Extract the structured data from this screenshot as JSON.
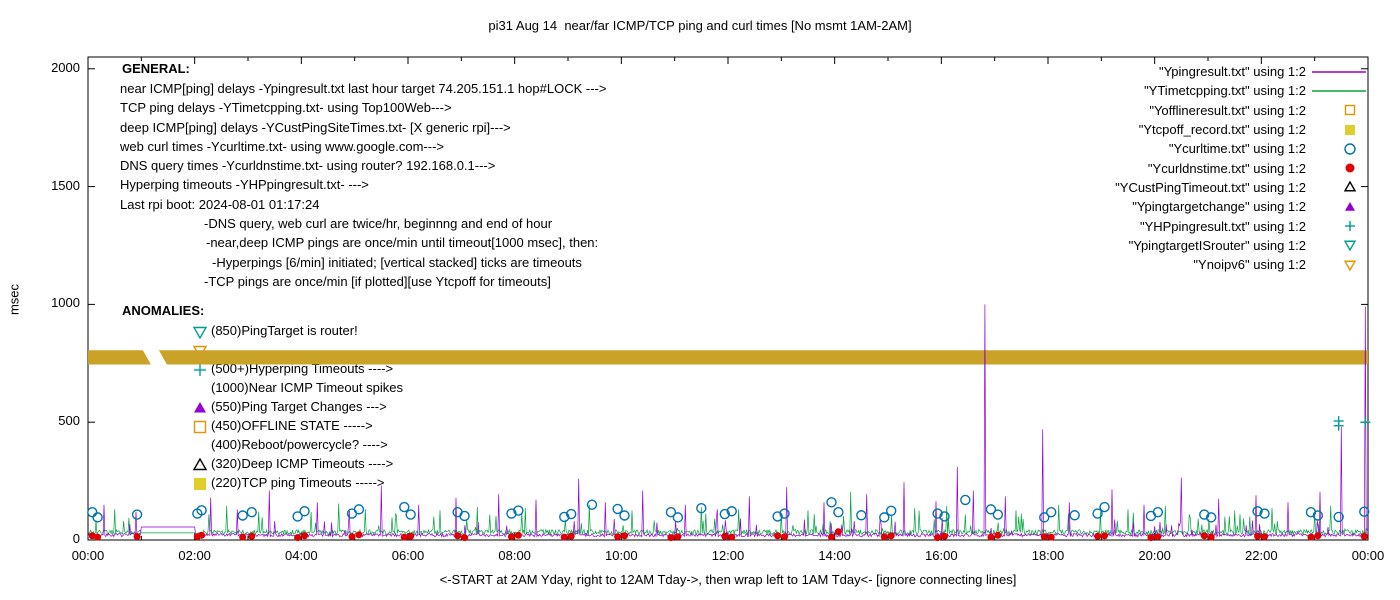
{
  "palette": {
    "purple": "#9400d3",
    "green": "#00a33c",
    "teal": "#009e97",
    "blue": "#0072b2",
    "red": "#e00000",
    "orange": "#e69500",
    "yellow": "#e0ce2a",
    "gold": "#c9a227",
    "black": "#000000"
  },
  "legend": {
    "items": [
      {
        "label": "\"Ypingresult.txt\" using 1:2",
        "marker": "line",
        "color": "purple"
      },
      {
        "label": "\"YTimetcpping.txt\" using 1:2",
        "marker": "line",
        "color": "green"
      },
      {
        "label": "\"Yofflineresult.txt\" using 1:2",
        "marker": "square-open",
        "color": "orange"
      },
      {
        "label": "\"Ytcpoff_record.txt\" using 1:2",
        "marker": "square-filled",
        "color": "yellow"
      },
      {
        "label": "\"Ycurltime.txt\" using 1:2",
        "marker": "circle-open",
        "color": "blue"
      },
      {
        "label": "\"Ycurldnstime.txt\" using 1:2",
        "marker": "circle-filled",
        "color": "red"
      },
      {
        "label": "\"YCustPingTimeout.txt\" using 1:2",
        "marker": "triangle-up-open",
        "color": "black"
      },
      {
        "label": "\"Ypingtargetchange\" using 1:2",
        "marker": "triangle-up-filled",
        "color": "purple"
      },
      {
        "label": "\"YHPpingresult.txt\" using 1:2",
        "marker": "plus",
        "color": "teal"
      },
      {
        "label": "\"YpingtargetISrouter\" using 1:2",
        "marker": "triangle-down-open",
        "color": "teal"
      },
      {
        "label": "\"Ynoipv6\" using 1:2",
        "marker": "triangle-down-open",
        "color": "orange"
      }
    ]
  },
  "general": {
    "heading": "GENERAL:",
    "lines": [
      {
        "text": "near ICMP[ping] delays -Ypingresult.txt last hour target 74.205.151.1 hop#LOCK --->",
        "indent": 0
      },
      {
        "text": "TCP ping delays -YTimetcpping.txt- using Top100Web--->",
        "indent": 0
      },
      {
        "text": "deep ICMP[ping] delays -YCustPingSiteTimes.txt- [X generic rpi]--->",
        "indent": 0
      },
      {
        "text": "web curl times -Ycurltime.txt- using www.google.com--->",
        "indent": 0
      },
      {
        "text": "DNS query times -Ycurldnstime.txt- using router? 192.168.0.1--->",
        "indent": 0
      },
      {
        "text": "Hyperping timeouts -YHPpingresult.txt- --->",
        "indent": 0
      },
      {
        "text": "Last rpi boot: 2024-08-01 01:17:24",
        "indent": 0
      },
      {
        "text": "-DNS query, web curl are twice/hr, beginnng and end of hour",
        "indent": 84
      },
      {
        "text": "-near,deep ICMP pings are once/min until timeout[1000 msec], then:",
        "indent": 86
      },
      {
        "text": "-Hyperpings [6/min] initiated; [vertical stacked] ticks are timeouts",
        "indent": 92
      },
      {
        "text": "-TCP pings are once/min [if plotted][use Ytcpoff for timeouts]",
        "indent": 84
      }
    ]
  },
  "anomalies": {
    "heading": "ANOMALIES:",
    "items": [
      {
        "marker": "triangle-down-open",
        "color": "teal",
        "label": "(850)PingTarget is router!"
      },
      {
        "marker": "triangle-down-open",
        "color": "orange",
        "label": ""
      },
      {
        "marker": "plus",
        "color": "teal",
        "label": "(500+)Hyperping Timeouts ---->"
      },
      {
        "marker": "none",
        "color": "black",
        "label": "(1000)Near ICMP Timeout spikes"
      },
      {
        "marker": "triangle-up-filled",
        "color": "purple",
        "label": "(550)Ping Target Changes --->"
      },
      {
        "marker": "square-open",
        "color": "orange",
        "label": "(450)OFFLINE STATE ----->"
      },
      {
        "marker": "none",
        "color": "black",
        "label": "(400)Reboot/powercycle? ---->"
      },
      {
        "marker": "triangle-up-open",
        "color": "black",
        "label": "(320)Deep ICMP Timeouts ---->"
      },
      {
        "marker": "square-filled",
        "color": "yellow",
        "label": "(220)TCP ping Timeouts ----->"
      }
    ]
  },
  "chart_data": {
    "type": "line",
    "title": "pi31 Aug 14  near/far ICMP/TCP ping and curl times [No msmt 1AM-2AM]",
    "xlabel": "<-START at 2AM Yday, right to 12AM Tday->, then wrap left to 1AM Tday<- [ignore connecting lines]",
    "ylabel": "msec",
    "xlim": [
      0,
      24
    ],
    "ylim": [
      0,
      2050
    ],
    "grid": false,
    "legend_position": "top-right",
    "x_ticks": {
      "values": [
        0,
        2,
        4,
        6,
        8,
        10,
        12,
        14,
        16,
        18,
        20,
        22,
        24
      ],
      "labels": [
        "00:00",
        "02:00",
        "04:00",
        "06:00",
        "08:00",
        "10:00",
        "12:00",
        "14:00",
        "16:00",
        "18:00",
        "20:00",
        "22:00",
        "00:00"
      ]
    },
    "y_ticks": {
      "values": [
        0,
        500,
        1000,
        1500,
        2000
      ],
      "labels": [
        "0",
        "500",
        "1000",
        "1500",
        "2000"
      ]
    },
    "series": [
      {
        "name": "Ytcpoff_record.txt",
        "plot": "band",
        "color": "gold",
        "value": 775,
        "half_width": 30,
        "gap_top": [
          1.03,
          1.33
        ],
        "gap_bottom": [
          1.18,
          1.48
        ]
      },
      {
        "name": "YTimetcpping.txt",
        "plot": "line",
        "color": "green",
        "synth": {
          "seed": 21,
          "base": 22,
          "jitter": 22,
          "spike_prob": 0.07,
          "spike_amp": 90,
          "gap": [
            1,
            2
          ],
          "gap_value": 30
        },
        "spikes": [
          [
            0.5,
            130
          ],
          [
            2.6,
            145
          ],
          [
            3.2,
            120
          ],
          [
            4.7,
            155
          ],
          [
            5.2,
            130
          ],
          [
            6.6,
            125
          ],
          [
            7.3,
            140
          ],
          [
            8.2,
            135
          ],
          [
            9.4,
            150
          ],
          [
            10.2,
            125
          ],
          [
            11.5,
            140
          ],
          [
            12.2,
            130
          ],
          [
            13.5,
            125
          ],
          [
            14.3,
            205
          ],
          [
            15.5,
            135
          ],
          [
            16.1,
            145
          ],
          [
            17.4,
            125
          ],
          [
            18.2,
            150
          ],
          [
            19.5,
            130
          ],
          [
            20.2,
            145
          ],
          [
            21.5,
            125
          ],
          [
            22.2,
            135
          ],
          [
            23.3,
            145
          ]
        ]
      },
      {
        "name": "Ypingresult.txt",
        "plot": "line",
        "color": "purple",
        "synth": {
          "seed": 7,
          "base": 14,
          "jitter": 14,
          "spike_prob": 0.05,
          "spike_amp": 70,
          "gap": [
            1,
            2
          ],
          "gap_value": 55
        },
        "spikes": [
          [
            0.3,
            150
          ],
          [
            0.9,
            120
          ],
          [
            2.3,
            180
          ],
          [
            2.8,
            130
          ],
          [
            3.4,
            210
          ],
          [
            4.3,
            160
          ],
          [
            4.9,
            130
          ],
          [
            5.5,
            230
          ],
          [
            6.2,
            150
          ],
          [
            6.9,
            180
          ],
          [
            7.7,
            195
          ],
          [
            8.4,
            170
          ],
          [
            9.2,
            260
          ],
          [
            9.7,
            160
          ],
          [
            10.4,
            210
          ],
          [
            11.2,
            150
          ],
          [
            11.8,
            130
          ],
          [
            12.4,
            185
          ],
          [
            13.1,
            225
          ],
          [
            13.8,
            160
          ],
          [
            14.6,
            195
          ],
          [
            15.3,
            245
          ],
          [
            15.9,
            165
          ],
          [
            16.3,
            310
          ],
          [
            16.6,
            210
          ],
          [
            16.82,
            1000
          ],
          [
            17.2,
            185
          ],
          [
            17.9,
            470
          ],
          [
            18.4,
            160
          ],
          [
            19.2,
            215
          ],
          [
            19.8,
            150
          ],
          [
            20.5,
            265
          ],
          [
            21.2,
            175
          ],
          [
            21.9,
            190
          ],
          [
            22.5,
            160
          ],
          [
            23.1,
            205
          ],
          [
            23.5,
            480
          ],
          [
            23.95,
            990
          ]
        ]
      },
      {
        "name": "Ycurltime.txt",
        "plot": "points",
        "marker": "circle-open",
        "color": "blue",
        "points": [
          [
            0.08,
            118
          ],
          [
            0.18,
            96
          ],
          [
            0.92,
            108
          ],
          [
            2.05,
            112
          ],
          [
            2.13,
            126
          ],
          [
            2.9,
            104
          ],
          [
            3.07,
            118
          ],
          [
            3.93,
            100
          ],
          [
            4.06,
            122
          ],
          [
            4.95,
            112
          ],
          [
            5.08,
            130
          ],
          [
            5.93,
            140
          ],
          [
            6.05,
            108
          ],
          [
            6.93,
            118
          ],
          [
            7.06,
            102
          ],
          [
            7.94,
            112
          ],
          [
            8.07,
            125
          ],
          [
            8.93,
            98
          ],
          [
            9.06,
            110
          ],
          [
            9.45,
            150
          ],
          [
            9.93,
            132
          ],
          [
            10.06,
            104
          ],
          [
            10.93,
            118
          ],
          [
            11.06,
            96
          ],
          [
            11.5,
            135
          ],
          [
            11.94,
            110
          ],
          [
            12.07,
            122
          ],
          [
            12.93,
            100
          ],
          [
            13.06,
            112
          ],
          [
            13.94,
            160
          ],
          [
            14.07,
            118
          ],
          [
            14.5,
            105
          ],
          [
            14.93,
            96
          ],
          [
            15.06,
            124
          ],
          [
            15.93,
            112
          ],
          [
            16.06,
            100
          ],
          [
            16.45,
            170
          ],
          [
            16.93,
            130
          ],
          [
            17.06,
            108
          ],
          [
            17.93,
            96
          ],
          [
            18.06,
            118
          ],
          [
            18.5,
            105
          ],
          [
            18.93,
            112
          ],
          [
            19.06,
            140
          ],
          [
            19.93,
            102
          ],
          [
            20.06,
            118
          ],
          [
            20.93,
            108
          ],
          [
            21.06,
            96
          ],
          [
            21.93,
            122
          ],
          [
            22.06,
            112
          ],
          [
            22.93,
            118
          ],
          [
            23.06,
            104
          ],
          [
            23.45,
            98
          ],
          [
            23.93,
            120
          ]
        ]
      },
      {
        "name": "Ycurldnstime.txt",
        "plot": "points",
        "marker": "circle-filled",
        "color": "red",
        "points": [
          [
            0.08,
            18
          ],
          [
            0.18,
            12
          ],
          [
            0.92,
            15
          ],
          [
            2.05,
            14
          ],
          [
            2.13,
            20
          ],
          [
            2.9,
            12
          ],
          [
            3.07,
            16
          ],
          [
            3.93,
            10
          ],
          [
            4.06,
            18
          ],
          [
            4.95,
            14
          ],
          [
            5.08,
            22
          ],
          [
            5.93,
            12
          ],
          [
            6.05,
            16
          ],
          [
            6.93,
            18
          ],
          [
            7.06,
            10
          ],
          [
            7.94,
            14
          ],
          [
            8.07,
            20
          ],
          [
            8.93,
            12
          ],
          [
            9.06,
            16
          ],
          [
            9.93,
            14
          ],
          [
            10.06,
            18
          ],
          [
            10.93,
            10
          ],
          [
            11.06,
            14
          ],
          [
            11.94,
            16
          ],
          [
            12.07,
            12
          ],
          [
            12.93,
            18
          ],
          [
            13.06,
            14
          ],
          [
            13.94,
            12
          ],
          [
            14.07,
            35
          ],
          [
            14.93,
            14
          ],
          [
            15.06,
            18
          ],
          [
            15.93,
            10
          ],
          [
            16.06,
            16
          ],
          [
            16.93,
            12
          ],
          [
            17.06,
            20
          ],
          [
            17.93,
            14
          ],
          [
            18.06,
            12
          ],
          [
            18.93,
            16
          ],
          [
            19.06,
            18
          ],
          [
            19.93,
            10
          ],
          [
            20.06,
            14
          ],
          [
            20.93,
            18
          ],
          [
            21.06,
            12
          ],
          [
            21.93,
            16
          ],
          [
            22.06,
            14
          ],
          [
            22.93,
            12
          ],
          [
            23.06,
            18
          ],
          [
            23.93,
            15
          ]
        ]
      },
      {
        "name": "YHPpingresult.txt",
        "plot": "points",
        "marker": "plus",
        "color": "teal",
        "points": [
          [
            23.45,
            505
          ],
          [
            23.45,
            485
          ],
          [
            23.95,
            500
          ]
        ]
      }
    ]
  }
}
